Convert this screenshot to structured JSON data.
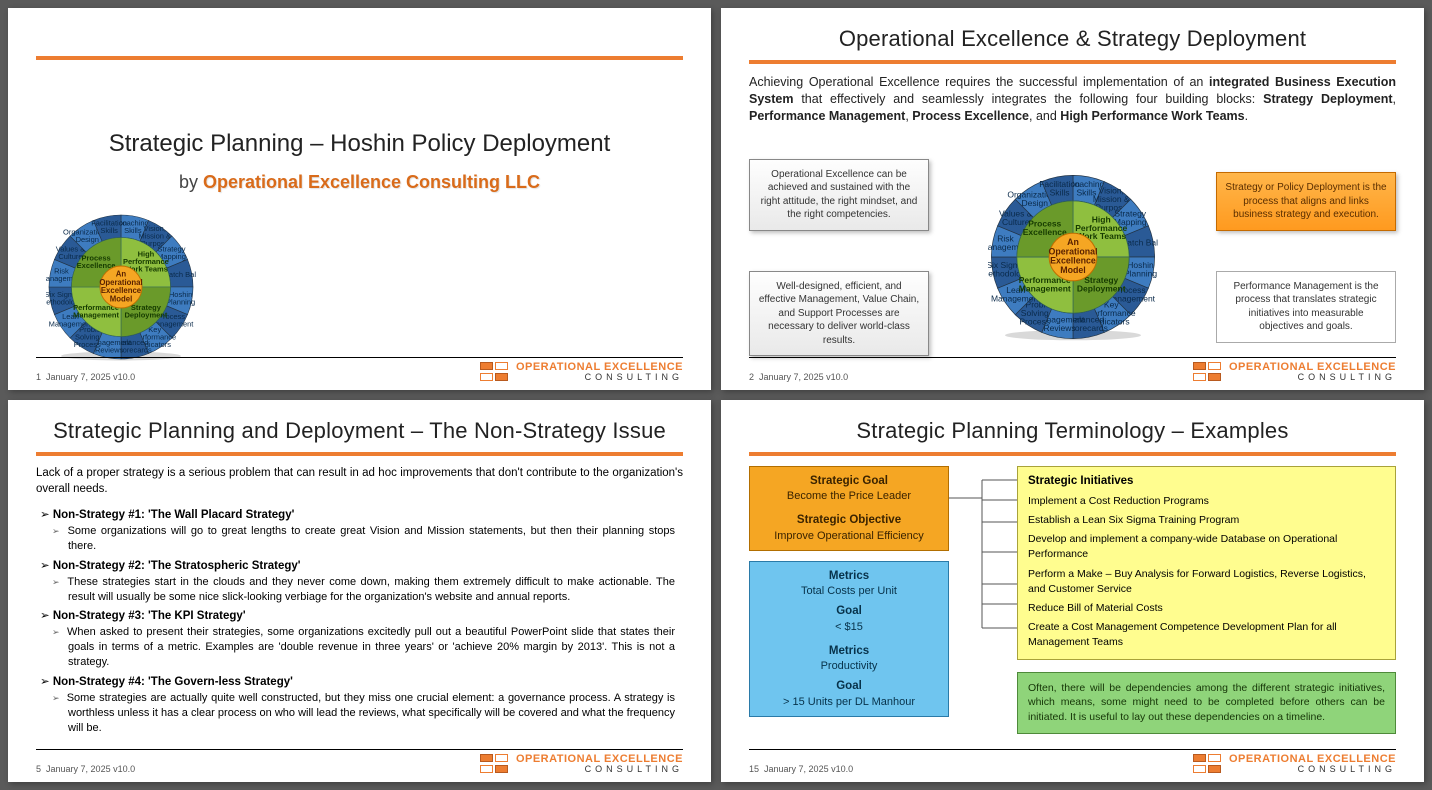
{
  "meta": {
    "date_version": "January 7, 2025 v10.0",
    "brand_line1": "OPERATIONAL EXCELLENCE",
    "brand_line2": "CONSULTING",
    "accent_color": "#ed7d31"
  },
  "slide1": {
    "page_no": "1",
    "title": "Strategic Planning – Hoshin Policy Deployment",
    "by_prefix": "by ",
    "company": "Operational Excellence Consulting LLC"
  },
  "slide2": {
    "page_no": "2",
    "title": "Operational Excellence & Strategy Deployment",
    "intro_html": "Achieving Operational Excellence requires the successful implementation of an <b>integrated Business Execution System</b> that effectively and seamlessly integrates the following four building blocks: <b>Strategy Deployment</b>, <b>Performance Management</b>, <b>Process Excellence</b>, and <b>High Performance Work Teams</b>.",
    "callouts": {
      "top_left": "Operational Excellence can be achieved and sustained with the right attitude, the right mindset, and the right competencies.",
      "bottom_left": "Well-designed, efficient, and effective Management, Value Chain, and Support Processes are necessary to deliver world-class results.",
      "top_right": "Strategy or Policy Deployment is the process that aligns and links business strategy and execution.",
      "bottom_right": "Performance Management is the process that translates strategic initiatives into measurable objectives and goals."
    }
  },
  "slide3": {
    "page_no": "5",
    "title": "Strategic Planning and Deployment – The Non-Strategy Issue",
    "lead": "Lack of a proper strategy is a serious problem that can result in ad hoc improvements that don't contribute to the organization's overall needs.",
    "items": [
      {
        "head": "Non-Strategy #1: 'The Wall Placard Strategy'",
        "desc": "Some organizations will go to great lengths to create great Vision and Mission statements, but then their planning stops there."
      },
      {
        "head": "Non-Strategy #2: 'The Stratospheric Strategy'",
        "desc": "These strategies start in the clouds and they never come down, making them extremely difficult to make actionable. The result will usually be some nice slick-looking verbiage for the organization's website and annual reports."
      },
      {
        "head": "Non-Strategy #3: 'The KPI Strategy'",
        "desc": "When asked to present their strategies, some organizations excitedly pull out a beautiful PowerPoint slide that states their goals in terms of a metric. Examples are 'double revenue in three years' or 'achieve 20% margin by 2013'. This is not a strategy."
      },
      {
        "head": "Non-Strategy #4: 'The Govern-less Strategy'",
        "desc": "Some strategies are actually quite well constructed, but they miss one crucial element: a governance process. A strategy is worthless unless it has a clear process on who will lead the reviews, what specifically will be covered and what the frequency will be."
      }
    ]
  },
  "slide4": {
    "page_no": "15",
    "title": "Strategic Planning Terminology – Examples",
    "goal_box": {
      "h1": "Strategic Goal",
      "v1": "Become the Price Leader",
      "h2": "Strategic Objective",
      "v2": "Improve Operational Efficiency"
    },
    "metrics_box": {
      "h1": "Metrics",
      "v1": "Total Costs per Unit",
      "h2": "Goal",
      "v2": "< $15",
      "h3": "Metrics",
      "v3": "Productivity",
      "h4": "Goal",
      "v4": "> 15 Units per DL Manhour"
    },
    "initiatives_title": "Strategic Initiatives",
    "initiatives": [
      "Implement a Cost Reduction Programs",
      "Establish a Lean Six Sigma Training Program",
      "Develop and implement a company-wide Database on Operational Performance",
      "Perform a Make – Buy Analysis for Forward Logistics, Reverse Logistics, and Customer Service",
      "Reduce Bill of Material Costs",
      "Create a Cost Management Competence Development Plan for all Management Teams"
    ],
    "note": "Often, there will be dependencies among the different strategic initiatives, which means, some might need to be completed before others can be initiated. It is useful to lay out these dependencies on a timeline."
  },
  "wheel": {
    "center": [
      "An",
      "Operational",
      "Excellence",
      "Model"
    ],
    "green_quads": [
      "High Performance Work Teams",
      "Strategy Deployment",
      "Performance Management",
      "Process Excellence"
    ],
    "outer": [
      "Coaching Skills",
      "Vision, Mission & Purpose",
      "Strategy Mapping",
      "Catch Ball",
      "Hoshin Planning",
      "Process Management",
      "Key Performance Indicators",
      "Balanced Scorecards",
      "Management Reviews",
      "8D Problem Solving Process",
      "Lean Management",
      "Six Sigma Methodology",
      "Risk Management",
      "Values & Culture",
      "Organizational Design",
      "Facilitation Skills"
    ],
    "colors": {
      "outer": "#3e7cc0",
      "outer2": "#2a5a96",
      "green": "#8fbf3f",
      "green2": "#6a9a2a",
      "core": "#f5a623",
      "core_border": "#c07000"
    }
  }
}
